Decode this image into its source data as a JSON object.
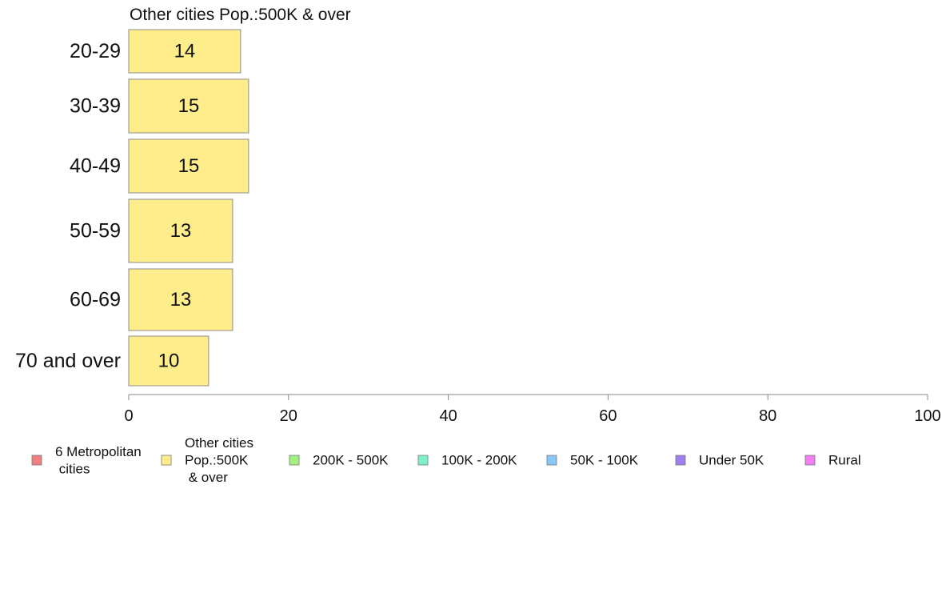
{
  "chart_data": {
    "type": "bar",
    "orientation": "horizontal",
    "title": "Other cities Pop.:500K & over",
    "categories": [
      "20-29",
      "30-39",
      "40-49",
      "50-59",
      "60-69",
      "70 and over"
    ],
    "series": [
      {
        "name": "Other cities Pop.:500K & over",
        "values": [
          14,
          15,
          15,
          13,
          13,
          10
        ]
      }
    ],
    "data_labels": [
      "14",
      "15",
      "15",
      "13",
      "13",
      "10"
    ],
    "xlim": [
      0,
      100
    ],
    "xticks": [
      0,
      20,
      40,
      60,
      80,
      100
    ],
    "grid": false,
    "bar_color": "#FFEC8B",
    "legend": {
      "placement": "bottom",
      "items": [
        {
          "label_lines": [
            "6 Metropolitan",
            " cities"
          ],
          "color": "#F08080"
        },
        {
          "label_lines": [
            "Other cities",
            "Pop.:500K",
            " & over"
          ],
          "color": "#FFEC8B"
        },
        {
          "label_lines": [
            "200K - 500K"
          ],
          "color": "#A0F080"
        },
        {
          "label_lines": [
            "100K - 200K"
          ],
          "color": "#80F0C8"
        },
        {
          "label_lines": [
            "50K - 100K"
          ],
          "color": "#88C8F8"
        },
        {
          "label_lines": [
            "Under 50K"
          ],
          "color": "#A080F0"
        },
        {
          "label_lines": [
            "Rural"
          ],
          "color": "#F080F0"
        }
      ]
    }
  }
}
